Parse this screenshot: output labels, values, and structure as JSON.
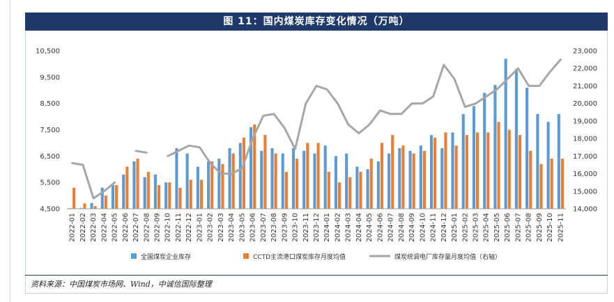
{
  "header": {
    "title": "图 11：国内煤炭库存变化情况（万吨）"
  },
  "footer": {
    "source": "资料来源：中国煤炭市场网、Wind，中诚信国际整理"
  },
  "chart_data": {
    "type": "bar",
    "title": "图 11：国内煤炭库存变化情况（万吨）",
    "categories": [
      "2022-01",
      "2022-02",
      "2022-03",
      "2022-04",
      "2022-05",
      "2022-06",
      "2022-07",
      "2022-08",
      "2022-09",
      "2022-10",
      "2022-11",
      "2022-12",
      "2023-01",
      "2023-02",
      "2023-03",
      "2023-04",
      "2023-05",
      "2023-06",
      "2023-07",
      "2023-08",
      "2023-09",
      "2023-10",
      "2023-11",
      "2023-12",
      "2024-01",
      "2024-02",
      "2024-03",
      "2024-04",
      "2024-05",
      "2024-06",
      "2024-07",
      "2024-08",
      "2024-09",
      "2024-10",
      "2024-11",
      "2024-12",
      "2025-01",
      "2025-02",
      "2025-03",
      "2025-04",
      "2025-05",
      "2025-06",
      "2025-07",
      "2025-08",
      "2025-09",
      "2025-10",
      "2025-11"
    ],
    "left_axis": {
      "ylim": [
        4500,
        10500
      ],
      "ticks": [
        "4,500",
        "5,500",
        "6,500",
        "7,500",
        "8,500",
        "9,500",
        "10,500"
      ]
    },
    "right_axis": {
      "ylim": [
        14000,
        23000
      ],
      "ticks": [
        "14,000",
        "15,000",
        "16,000",
        "17,000",
        "18,000",
        "19,000",
        "20,000",
        "21,000",
        "22,000",
        "23,000"
      ]
    },
    "legend_position": "bottom",
    "series": [
      {
        "name": "全国煤炭企业库存",
        "type": "bar",
        "axis": "left",
        "color": "#5b9bd5",
        "values": [
          4520,
          4530,
          4720,
          5300,
          5400,
          5800,
          6300,
          5700,
          5800,
          5500,
          6800,
          6600,
          6100,
          6300,
          6400,
          6800,
          7000,
          7600,
          6700,
          6800,
          6600,
          6800,
          6700,
          6600,
          6900,
          6500,
          6600,
          6100,
          6000,
          6300,
          6600,
          6800,
          6700,
          6900,
          7300,
          6800,
          7400,
          8100,
          8400,
          8900,
          9200,
          10200,
          9800,
          9100,
          8100,
          7800,
          8100
        ]
      },
      {
        "name": "CCTD主流港口煤炭库存月度均值",
        "type": "bar",
        "axis": "left",
        "color": "#ed7d31",
        "values": [
          5300,
          4700,
          4600,
          5000,
          5400,
          6100,
          6400,
          5900,
          5400,
          5500,
          5300,
          5600,
          5600,
          6300,
          6200,
          6600,
          7200,
          7700,
          7300,
          6600,
          5900,
          6400,
          7000,
          7000,
          5900,
          5500,
          5700,
          5900,
          6400,
          7000,
          7300,
          6900,
          6600,
          6700,
          7200,
          7400,
          6900,
          7300,
          7400,
          7400,
          7800,
          7500,
          7300,
          6700,
          6200,
          6400,
          6400
        ]
      },
      {
        "name": "煤炭统调电厂库存量月度均值（右轴）",
        "type": "line",
        "axis": "right",
        "color": "#a6a6a6",
        "values": [
          16600,
          16500,
          14600,
          15000,
          15500,
          null,
          17300,
          17200,
          null,
          17000,
          17300,
          17600,
          17500,
          16600,
          16000,
          16000,
          16300,
          18000,
          19300,
          19400,
          18600,
          17400,
          20000,
          21000,
          20800,
          20000,
          18800,
          18300,
          18800,
          19600,
          19400,
          19400,
          20000,
          20000,
          20400,
          22200,
          21400,
          19800,
          20000,
          20400,
          20800,
          21400,
          22000,
          21000,
          21000,
          21800,
          22500
        ]
      }
    ]
  }
}
